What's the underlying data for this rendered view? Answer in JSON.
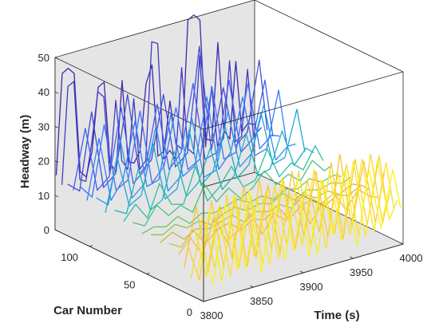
{
  "chart_data": {
    "type": "line",
    "style": "3d-waterfall",
    "title": "",
    "xlabel": "Time (s)",
    "ylabel": "Car Number",
    "zlabel": "Headway (m)",
    "xlim": [
      3800,
      4000
    ],
    "ylim": [
      0,
      130
    ],
    "zlim": [
      0,
      50
    ],
    "x_ticks": [
      3800,
      3850,
      3900,
      3950,
      4000
    ],
    "y_ticks": [
      0,
      50,
      100
    ],
    "z_ticks": [
      0,
      10,
      20,
      30,
      40,
      50
    ],
    "grid": false,
    "legend": "none",
    "background": "#e5e5e5",
    "colormap": "parula",
    "colormap_stops": [
      "#3e26a8",
      "#4367fd",
      "#2797eb",
      "#1bbbb2",
      "#5ac865",
      "#c3bc3a",
      "#fbbc3e",
      "#f9fb15"
    ],
    "series_note": "Each line is one car's headway over time; color varies with car number.",
    "series": [
      {
        "car": 2,
        "x": [
          3800,
          3812,
          3824,
          3836,
          3848,
          3860,
          3872,
          3884,
          3896,
          3908,
          3920,
          3932,
          3944,
          3956,
          3968,
          3980,
          3992,
          4000
        ],
        "z": [
          16,
          4,
          26,
          6,
          28,
          3,
          22,
          5,
          27,
          4,
          25,
          8,
          26,
          3,
          24,
          6,
          22,
          10
        ]
      },
      {
        "car": 5,
        "x": [
          3800,
          3812,
          3824,
          3836,
          3848,
          3860,
          3872,
          3884,
          3896,
          3908,
          3920,
          3932,
          3944,
          3956,
          3968,
          3980,
          3992,
          4000
        ],
        "z": [
          8,
          25,
          3,
          27,
          5,
          24,
          4,
          28,
          6,
          23,
          3,
          26,
          5,
          27,
          4,
          25,
          7,
          12
        ]
      },
      {
        "car": 8,
        "x": [
          3800,
          3812,
          3824,
          3836,
          3848,
          3860,
          3872,
          3884,
          3896,
          3908,
          3920,
          3932,
          3944,
          3956,
          3968,
          3980,
          3992,
          4000
        ],
        "z": [
          20,
          5,
          24,
          3,
          26,
          7,
          25,
          4,
          22,
          6,
          27,
          3,
          24,
          5,
          26,
          4,
          23,
          9
        ]
      },
      {
        "car": 11,
        "x": [
          3800,
          3812,
          3824,
          3836,
          3848,
          3860,
          3872,
          3884,
          3896,
          3908,
          3920,
          3932,
          3944,
          3956,
          3968,
          3980,
          3992,
          4000
        ],
        "z": [
          5,
          22,
          6,
          26,
          4,
          24,
          3,
          25,
          7,
          27,
          4,
          22,
          6,
          25,
          3,
          26,
          5,
          14
        ]
      },
      {
        "car": 14,
        "x": [
          3800,
          3812,
          3824,
          3836,
          3848,
          3860,
          3872,
          3884,
          3896,
          3908,
          3920,
          3932,
          3944,
          3956,
          3968,
          3980,
          3992,
          4000
        ],
        "z": [
          14,
          3,
          25,
          5,
          24,
          3,
          27,
          6,
          25,
          4,
          23,
          7,
          26,
          3,
          25,
          5,
          24,
          8
        ]
      },
      {
        "car": 17,
        "x": [
          3800,
          3812,
          3824,
          3836,
          3848,
          3860,
          3872,
          3884,
          3896,
          3908,
          3920,
          3932,
          3944,
          3956,
          3968,
          3980,
          3992,
          4000
        ],
        "z": [
          7,
          24,
          4,
          22,
          6,
          26,
          4,
          24,
          3,
          26,
          6,
          24,
          4,
          27,
          5,
          23,
          4,
          18
        ]
      },
      {
        "car": 22,
        "x": [
          3800,
          3812,
          3824,
          3836,
          3848,
          3860,
          3872,
          3884,
          3896,
          3908,
          3920,
          3932,
          3944,
          3956,
          3968,
          3980,
          3992,
          4000
        ],
        "z": [
          10,
          14,
          8,
          18,
          10,
          12,
          16,
          9,
          14,
          11,
          17,
          8,
          13,
          15,
          9,
          14,
          11,
          10
        ]
      },
      {
        "car": 30,
        "x": [
          3800,
          3812,
          3824,
          3836,
          3848,
          3860,
          3872,
          3884,
          3896,
          3908,
          3920,
          3932,
          3944,
          3956,
          3968,
          3980,
          3992,
          4000
        ],
        "z": [
          12,
          10,
          14,
          9,
          12,
          13,
          10,
          12,
          11,
          14,
          9,
          12,
          13,
          10,
          12,
          11,
          13,
          11
        ]
      },
      {
        "car": 38,
        "x": [
          3800,
          3812,
          3824,
          3836,
          3848,
          3860,
          3872,
          3884,
          3896,
          3908,
          3920,
          3932,
          3944,
          3956,
          3968,
          3980,
          3992,
          4000
        ],
        "z": [
          11,
          13,
          10,
          12,
          11,
          12,
          13,
          10,
          12,
          11,
          12,
          10,
          13,
          11,
          12,
          10,
          12,
          11
        ]
      },
      {
        "car": 46,
        "x": [
          3800,
          3812,
          3824,
          3836,
          3848,
          3860,
          3872,
          3884,
          3896,
          3908,
          3920,
          3932,
          3944,
          3956,
          3968,
          3980,
          3992,
          4000
        ],
        "z": [
          12,
          11,
          13,
          11,
          12,
          10,
          12,
          13,
          11,
          12,
          11,
          13,
          10,
          12,
          11,
          12,
          11,
          12
        ]
      },
      {
        "car": 54,
        "x": [
          3800,
          3812,
          3824,
          3836,
          3848,
          3860,
          3872,
          3884,
          3896,
          3908,
          3920,
          3932,
          3944,
          3956,
          3968,
          3980,
          3992,
          4000
        ],
        "z": [
          11,
          12,
          11,
          13,
          10,
          12,
          11,
          12,
          13,
          11,
          12,
          10,
          12,
          11,
          13,
          11,
          12,
          11
        ]
      },
      {
        "car": 62,
        "x": [
          3800,
          3812,
          3824,
          3836,
          3848,
          3860,
          3872,
          3884,
          3896,
          3908,
          3920,
          3932,
          3944,
          3956,
          3968,
          3980,
          3992,
          4000
        ],
        "z": [
          13,
          11,
          16,
          12,
          14,
          11,
          18,
          12,
          15,
          11,
          13,
          17,
          12,
          14,
          11,
          16,
          12,
          13
        ]
      },
      {
        "car": 70,
        "x": [
          3800,
          3812,
          3824,
          3836,
          3848,
          3860,
          3872,
          3884,
          3896,
          3908,
          3920,
          3932,
          3944,
          3956,
          3968,
          3980,
          3992,
          4000
        ],
        "z": [
          12,
          16,
          11,
          20,
          13,
          12,
          22,
          11,
          14,
          19,
          12,
          13,
          21,
          12,
          15,
          12,
          18,
          13
        ]
      },
      {
        "car": 78,
        "x": [
          3800,
          3812,
          3824,
          3836,
          3848,
          3860,
          3872,
          3884,
          3896,
          3908,
          3920,
          3932,
          3944,
          3956,
          3968,
          3980,
          3992,
          4000
        ],
        "z": [
          14,
          12,
          24,
          11,
          13,
          26,
          12,
          15,
          24,
          11,
          14,
          25,
          12,
          13,
          23,
          12,
          16,
          14
        ]
      },
      {
        "car": 86,
        "x": [
          3800,
          3812,
          3824,
          3836,
          3848,
          3860,
          3872,
          3884,
          3896,
          3908,
          3920,
          3932,
          3944,
          3956,
          3968,
          3980,
          3992,
          4000
        ],
        "z": [
          12,
          27,
          12,
          14,
          28,
          11,
          13,
          29,
          12,
          15,
          27,
          11,
          14,
          28,
          12,
          13,
          26,
          13
        ]
      },
      {
        "car": 94,
        "x": [
          3800,
          3812,
          3824,
          3836,
          3848,
          3860,
          3872,
          3884,
          3896,
          3908,
          3920,
          3932,
          3944,
          3956,
          3968,
          3980,
          3992,
          4000
        ],
        "z": [
          15,
          12,
          30,
          12,
          15,
          31,
          11,
          14,
          30,
          12,
          13,
          29,
          12,
          15,
          28,
          11,
          14,
          14
        ]
      },
      {
        "car": 102,
        "x": [
          3800,
          3812,
          3824,
          3836,
          3848,
          3860,
          3872,
          3884,
          3896,
          3908,
          3920,
          3932,
          3944,
          3956,
          3968,
          3980,
          3992,
          4000
        ],
        "z": [
          13,
          30,
          11,
          16,
          32,
          12,
          13,
          31,
          12,
          14,
          33,
          11,
          15,
          30,
          12,
          13,
          29,
          13
        ]
      },
      {
        "car": 108,
        "x": [
          3800,
          3812,
          3824,
          3836,
          3848,
          3860,
          3872,
          3884,
          3896,
          3908,
          3920,
          3932,
          3944,
          3956,
          3968,
          3980,
          3992,
          4000
        ],
        "z": [
          16,
          12,
          32,
          12,
          14,
          33,
          11,
          15,
          31,
          12,
          14,
          34,
          12,
          13,
          32,
          12,
          15,
          14
        ]
      },
      {
        "car": 114,
        "x": [
          3800,
          3812,
          3824,
          3836,
          3848,
          3860,
          3872,
          3884,
          3896,
          3908,
          3920,
          3932,
          3944,
          3956,
          3968,
          3980,
          3992,
          4000
        ],
        "z": [
          14,
          31,
          12,
          15,
          34,
          11,
          14,
          32,
          12,
          16,
          35,
          12,
          13,
          33,
          11,
          14,
          30,
          13
        ]
      },
      {
        "car": 119,
        "x": [
          3800,
          3812,
          3824,
          3836,
          3848,
          3860,
          3872,
          3884,
          3896,
          3908,
          3920,
          3932,
          3944,
          3956,
          3968,
          3980,
          3992,
          4000
        ],
        "z": [
          15,
          12,
          34,
          11,
          14,
          36,
          12,
          15,
          33,
          11,
          14,
          44,
          13,
          30,
          12,
          15,
          35,
          14
        ]
      },
      {
        "car": 124,
        "x": [
          3800,
          3806,
          3812,
          3818,
          3824,
          3830,
          3836,
          3842,
          3848,
          3854,
          3860,
          3866,
          3872,
          3878,
          3884,
          3890,
          3896,
          3902,
          3908,
          3914,
          3920,
          3926,
          3932,
          3938,
          3944,
          3950,
          3956,
          3962,
          3968,
          3974,
          3980,
          3986,
          3992,
          4000
        ],
        "z": [
          14,
          42,
          43,
          14,
          13,
          24,
          38,
          36,
          13,
          34,
          16,
          13,
          33,
          12,
          14,
          48,
          47,
          13,
          15,
          12,
          38,
          14,
          12,
          40,
          13,
          30,
          12,
          14,
          36,
          12,
          13,
          32,
          12,
          14
        ]
      },
      {
        "car": 129,
        "x": [
          3800,
          3806,
          3812,
          3818,
          3824,
          3830,
          3836,
          3842,
          3848,
          3854,
          3860,
          3866,
          3872,
          3878,
          3884,
          3890,
          3896,
          3902,
          3908,
          3914,
          3920,
          3926,
          3932,
          3938,
          3944,
          3950,
          3956,
          3962,
          3968,
          3974,
          3980,
          3986,
          3992,
          4000
        ],
        "z": [
          16,
          45,
          46,
          44,
          15,
          13,
          20,
          38,
          39,
          15,
          12,
          38,
          14,
          13,
          16,
          35,
          40,
          13,
          14,
          28,
          15,
          13,
          50,
          51,
          49,
          14,
          13,
          41,
          15,
          12,
          34,
          13,
          15,
          14
        ]
      }
    ]
  }
}
